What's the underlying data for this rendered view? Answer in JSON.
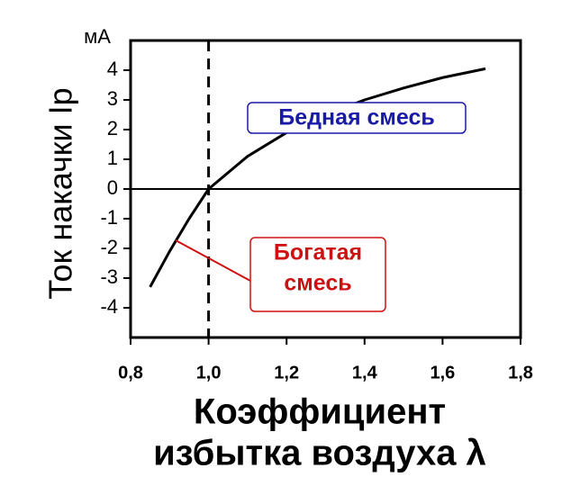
{
  "chart_data": {
    "type": "line",
    "ylabel": "Ток накачки Iр",
    "y_unit": "мА",
    "xlabel": [
      "Коэффициент",
      "избытка воздуха λ"
    ],
    "x": [
      0.85,
      0.9,
      0.95,
      1.0,
      1.1,
      1.2,
      1.3,
      1.4,
      1.5,
      1.6,
      1.71
    ],
    "series": [
      {
        "color": "#000000",
        "values": [
          -3.3,
          -2.1,
          -1.0,
          0,
          1.1,
          1.9,
          2.5,
          3.0,
          3.4,
          3.75,
          4.05
        ]
      }
    ],
    "xlim": [
      0.8,
      1.8
    ],
    "xticks": [
      {
        "value": 0.8,
        "label": "0,8"
      },
      {
        "value": 1.0,
        "label": "1,0"
      },
      {
        "value": 1.2,
        "label": "1,2"
      },
      {
        "value": 1.4,
        "label": "1,4"
      },
      {
        "value": 1.6,
        "label": "1,6"
      },
      {
        "value": 1.8,
        "label": "1,8"
      }
    ],
    "ylim": [
      -5,
      5
    ],
    "yticks": [
      -4,
      -3,
      -2,
      -1,
      0,
      1,
      2,
      3,
      4
    ],
    "hline": 0,
    "vline": 1.0,
    "annotations": [
      {
        "text": [
          "Бедная смесь"
        ],
        "color": "#1a1aa8"
      },
      {
        "text": [
          "Богатая",
          "смесь"
        ],
        "color": "#d01010"
      }
    ]
  }
}
